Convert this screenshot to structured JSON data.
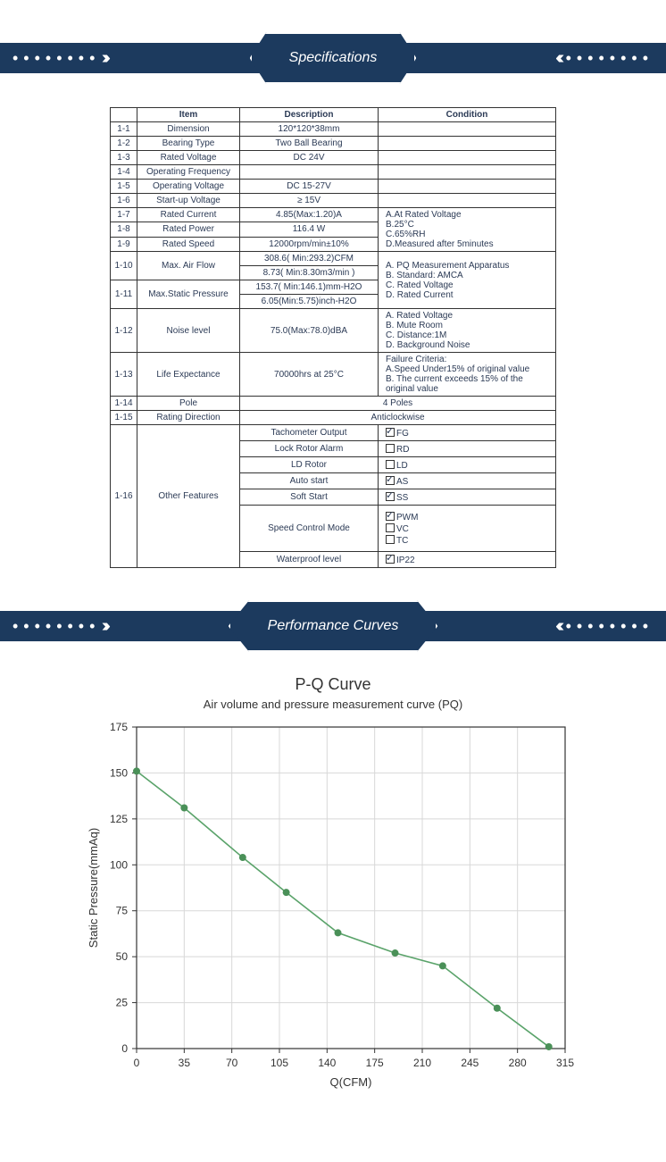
{
  "banners": {
    "specs": "Specifications",
    "perf": "Performance Curves"
  },
  "tableHeaders": [
    "Item",
    "Description",
    "Condition"
  ],
  "specs": [
    {
      "id": "1-1",
      "item": "Dimension",
      "desc": "120*120*38mm",
      "cond": ""
    },
    {
      "id": "1-2",
      "item": "Bearing Type",
      "desc": "Two Ball Bearing",
      "cond": ""
    },
    {
      "id": "1-3",
      "item": "Rated Voltage",
      "desc": "DC 24V",
      "cond": ""
    },
    {
      "id": "1-4",
      "item": "Operating Frequency",
      "desc": "",
      "cond": ""
    },
    {
      "id": "1-5",
      "item": "Operating Voltage",
      "desc": "DC 15-27V",
      "cond": ""
    },
    {
      "id": "1-6",
      "item": "Start-up Voltage",
      "desc": "≥ 15V",
      "cond": ""
    }
  ],
  "ratedBlock": {
    "rows": [
      {
        "id": "1-7",
        "item": "Rated Current",
        "desc": "4.85(Max:1.20)A"
      },
      {
        "id": "1-8",
        "item": "Rated Power",
        "desc": "116.4 W"
      },
      {
        "id": "1-9",
        "item": "Rated Speed",
        "desc": "12000rpm/min±10%"
      }
    ],
    "cond": "A.At Rated Voltage\nB.25°C\nC.65%RH\nD.Measured after 5minutes"
  },
  "flowPressBlock": {
    "rows": [
      {
        "id": "1-10",
        "item": "Max. Air Flow",
        "descs": [
          "308.6( Min:293.2)CFM",
          "8.73( Min:8.30m3/min )"
        ]
      },
      {
        "id": "1-11",
        "item": "Max.Static Pressure",
        "descs": [
          "153.7( Min:146.1)mm-H2O",
          "6.05(Min:5.75)inch-H2O"
        ]
      }
    ],
    "cond": "A. PQ Measurement Apparatus\nB. Standard: AMCA\nC. Rated Voltage\nD. Rated Current"
  },
  "noise": {
    "id": "1-12",
    "item": "Noise level",
    "desc": "75.0(Max:78.0)dBA",
    "cond": "A. Rated Voltage\nB. Mute Room\nC. Distance:1M\nD. Background Noise"
  },
  "life": {
    "id": "1-13",
    "item": "Life Expectance",
    "desc": "70000hrs at 25°C",
    "cond": "Failure Criteria:\nA.Speed Under15% of original value\nB. The current exceeds 15% of the original value"
  },
  "pole": {
    "id": "1-14",
    "item": "Pole",
    "merged": "4 Poles"
  },
  "dir": {
    "id": "1-15",
    "item": "Rating Direction",
    "merged": "Anticlockwise"
  },
  "features": {
    "id": "1-16",
    "item": "Other Features",
    "rows": [
      {
        "desc": "Tachometer Output",
        "opts": [
          {
            "label": "FG",
            "checked": true
          }
        ]
      },
      {
        "desc": "Lock Rotor Alarm",
        "opts": [
          {
            "label": "RD",
            "checked": false
          }
        ]
      },
      {
        "desc": "LD Rotor",
        "opts": [
          {
            "label": "LD",
            "checked": false
          }
        ]
      },
      {
        "desc": "Auto start",
        "opts": [
          {
            "label": "AS",
            "checked": true
          }
        ]
      },
      {
        "desc": "Soft Start",
        "opts": [
          {
            "label": "SS",
            "checked": true
          }
        ]
      },
      {
        "desc": "Speed Control Mode",
        "opts": [
          {
            "label": "PWM",
            "checked": true
          },
          {
            "label": "VC",
            "checked": false
          },
          {
            "label": "TC",
            "checked": false
          }
        ]
      },
      {
        "desc": "Waterproof level",
        "opts": [
          {
            "label": "IP22",
            "checked": true
          }
        ]
      }
    ]
  },
  "chart": {
    "title": "P-Q Curve",
    "subtitle": "Air volume and pressure measurement curve (PQ)",
    "type": "line-scatter",
    "xlabel": "Q(CFM)",
    "ylabel": "Static Pressure(mmAq)",
    "xlim": [
      0,
      315
    ],
    "xtick_step": 35,
    "ylim": [
      0,
      175
    ],
    "ytick_step": 25,
    "points": [
      {
        "x": 0,
        "y": 151
      },
      {
        "x": 35,
        "y": 131
      },
      {
        "x": 78,
        "y": 104
      },
      {
        "x": 110,
        "y": 85
      },
      {
        "x": 148,
        "y": 63
      },
      {
        "x": 190,
        "y": 52
      },
      {
        "x": 225,
        "y": 45
      },
      {
        "x": 265,
        "y": 22
      },
      {
        "x": 303,
        "y": 1
      }
    ],
    "line_color": "#5aa36a",
    "marker_color": "#4a9058",
    "grid_color": "#d8d8d8",
    "axis_color": "#333333",
    "bg_color": "#ffffff",
    "title_fontsize": 18,
    "subtitle_fontsize": 13,
    "label_fontsize": 13,
    "tick_fontsize": 12,
    "marker_radius": 4,
    "line_width": 1.6
  }
}
